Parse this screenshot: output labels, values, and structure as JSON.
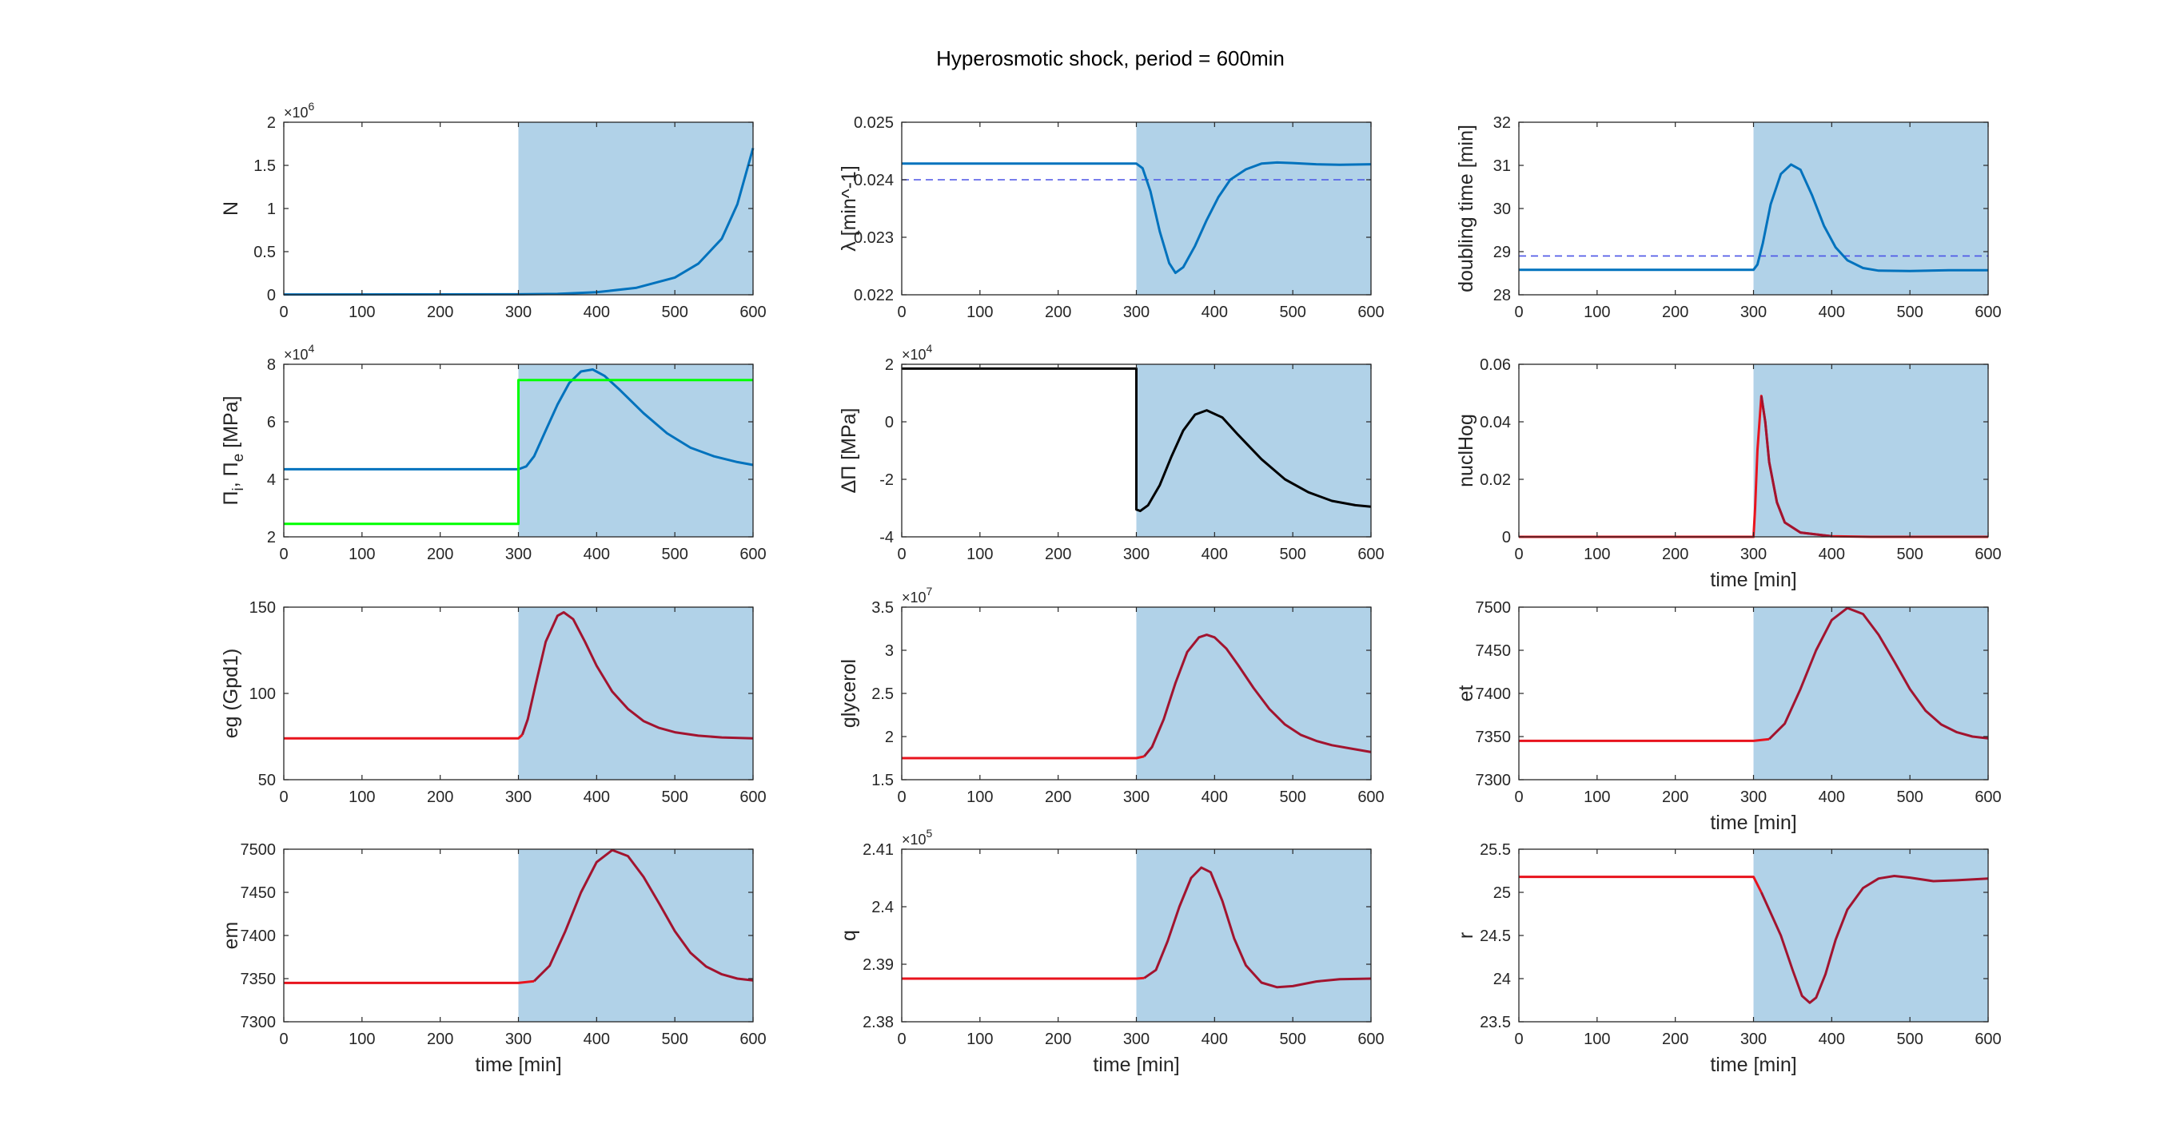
{
  "figure_title": "Hyperosmotic shock, period = 600min",
  "colors": {
    "blue": "#0072bd",
    "green": "#00ff00",
    "black": "#000000",
    "red": "#e8131d",
    "dark_red": "#a2142f",
    "shade": "#b1d2e8",
    "dashed": "#4b54e6"
  },
  "chart_data": [
    {
      "id": "N",
      "type": "line",
      "ylabel": "N",
      "xlabel": "",
      "xlim": [
        0,
        600
      ],
      "ylim": [
        0,
        2
      ],
      "xticks": [
        "0",
        "100",
        "200",
        "300",
        "400",
        "500",
        "600"
      ],
      "yticks": [
        "0",
        "0.5",
        "1",
        "1.5",
        "2"
      ],
      "exponent": "6",
      "shade_from": 300,
      "series": [
        {
          "color": "blue",
          "x": [
            0,
            300,
            350,
            400,
            450,
            500,
            530,
            560,
            580,
            600
          ],
          "y": [
            0.004,
            0.006,
            0.01,
            0.03,
            0.08,
            0.2,
            0.36,
            0.65,
            1.05,
            1.7
          ]
        }
      ]
    },
    {
      "id": "lambda",
      "type": "line",
      "ylabel": "λ [min^-1]",
      "xlabel": "",
      "xlim": [
        0,
        600
      ],
      "ylim": [
        0.022,
        0.025
      ],
      "xticks": [
        "0",
        "100",
        "200",
        "300",
        "400",
        "500",
        "600"
      ],
      "yticks": [
        "0.022",
        "0.023",
        "0.024",
        "0.025"
      ],
      "shade_from": 300,
      "hline": 0.024,
      "series": [
        {
          "color": "blue",
          "x": [
            0,
            300,
            308,
            318,
            330,
            342,
            350,
            360,
            375,
            390,
            405,
            420,
            440,
            460,
            480,
            500,
            530,
            560,
            600
          ],
          "y": [
            0.02428,
            0.02428,
            0.0242,
            0.0238,
            0.0231,
            0.02255,
            0.02238,
            0.02248,
            0.02285,
            0.0233,
            0.0237,
            0.024,
            0.02418,
            0.02428,
            0.0243,
            0.02429,
            0.02427,
            0.02426,
            0.02427
          ]
        }
      ]
    },
    {
      "id": "doubling",
      "type": "line",
      "ylabel": "doubling time [min]",
      "xlabel": "",
      "xlim": [
        0,
        600
      ],
      "ylim": [
        28,
        32
      ],
      "xticks": [
        "0",
        "100",
        "200",
        "300",
        "400",
        "500",
        "600"
      ],
      "yticks": [
        "28",
        "29",
        "30",
        "31",
        "32"
      ],
      "shade_from": 300,
      "hline": 28.9,
      "series": [
        {
          "color": "blue",
          "x": [
            0,
            300,
            305,
            312,
            322,
            335,
            348,
            360,
            375,
            390,
            405,
            420,
            440,
            460,
            500,
            550,
            600
          ],
          "y": [
            28.58,
            28.58,
            28.7,
            29.2,
            30.1,
            30.8,
            31.02,
            30.9,
            30.3,
            29.6,
            29.1,
            28.8,
            28.62,
            28.56,
            28.55,
            28.57,
            28.57
          ]
        }
      ]
    },
    {
      "id": "pressure",
      "type": "line",
      "ylabel": "Πi, Πe [MPa]",
      "xlabel": "",
      "xlim": [
        0,
        600
      ],
      "ylim": [
        2,
        8
      ],
      "xticks": [
        "0",
        "100",
        "200",
        "300",
        "400",
        "500",
        "600"
      ],
      "yticks": [
        "2",
        "4",
        "6",
        "8"
      ],
      "exponent": "4",
      "shade_from": 300,
      "series": [
        {
          "color": "blue",
          "x": [
            0,
            300,
            310,
            320,
            335,
            350,
            365,
            380,
            395,
            410,
            430,
            460,
            490,
            520,
            550,
            580,
            600
          ],
          "y": [
            4.35,
            4.35,
            4.45,
            4.8,
            5.7,
            6.6,
            7.35,
            7.75,
            7.82,
            7.6,
            7.1,
            6.3,
            5.6,
            5.1,
            4.8,
            4.6,
            4.5
          ]
        },
        {
          "color": "green",
          "x": [
            0,
            300,
            300,
            600
          ],
          "y": [
            2.45,
            2.45,
            7.45,
            7.45
          ]
        }
      ]
    },
    {
      "id": "dpi",
      "type": "line",
      "ylabel": "ΔΠ [MPa]",
      "xlabel": "",
      "xlim": [
        0,
        600
      ],
      "ylim": [
        -4,
        2
      ],
      "xticks": [
        "0",
        "100",
        "200",
        "300",
        "400",
        "500",
        "600"
      ],
      "yticks": [
        "-4",
        "-2",
        "0",
        "2"
      ],
      "exponent": "4",
      "shade_from": 300,
      "series": [
        {
          "color": "black",
          "x": [
            0,
            300,
            300,
            305,
            315,
            330,
            345,
            360,
            375,
            390,
            410,
            430,
            460,
            490,
            520,
            550,
            580,
            600
          ],
          "y": [
            1.85,
            1.85,
            -3.05,
            -3.1,
            -2.9,
            -2.2,
            -1.2,
            -0.3,
            0.25,
            0.4,
            0.15,
            -0.45,
            -1.3,
            -2.0,
            -2.45,
            -2.75,
            -2.9,
            -2.95
          ]
        }
      ]
    },
    {
      "id": "nuclHog",
      "type": "line",
      "ylabel": "nuclHog",
      "xlabel": "time [min]",
      "xlim": [
        0,
        600
      ],
      "ylim": [
        0,
        0.06
      ],
      "xticks": [
        "0",
        "100",
        "200",
        "300",
        "400",
        "500",
        "600"
      ],
      "yticks": [
        "0",
        "0.02",
        "0.04",
        "0.06"
      ],
      "shade_from": 300,
      "series": [
        {
          "color": "red",
          "x": [
            0,
            300,
            302,
            305,
            310,
            315,
            320,
            330,
            340,
            360,
            400,
            450,
            600
          ],
          "y": [
            0,
            0,
            0.01,
            0.03,
            0.049,
            0.04,
            0.026,
            0.012,
            0.005,
            0.0015,
            0.0002,
            0,
            0
          ]
        },
        {
          "color": "dark_red",
          "x": [
            310,
            315,
            320,
            330,
            340,
            360,
            400
          ],
          "y": [
            0.049,
            0.04,
            0.026,
            0.012,
            0.005,
            0.0015,
            0.0002
          ]
        }
      ]
    },
    {
      "id": "eg",
      "type": "line",
      "ylabel": "eg (Gpd1)",
      "xlabel": "",
      "xlim": [
        0,
        600
      ],
      "ylim": [
        50,
        150
      ],
      "xticks": [
        "0",
        "100",
        "200",
        "300",
        "400",
        "500",
        "600"
      ],
      "yticks": [
        "50",
        "100",
        "150"
      ],
      "shade_from": 300,
      "series": [
        {
          "color": "red",
          "x": [
            0,
            300,
            305
          ],
          "y": [
            74,
            74,
            76
          ]
        },
        {
          "color": "dark_red",
          "x": [
            305,
            312,
            322,
            335,
            350,
            358,
            370,
            385,
            400,
            420,
            440,
            460,
            480,
            500,
            530,
            560,
            600
          ],
          "y": [
            76,
            85,
            105,
            130,
            145,
            147,
            143,
            130,
            116,
            101,
            91,
            84,
            80,
            77.5,
            75.5,
            74.5,
            74
          ]
        }
      ]
    },
    {
      "id": "glycerol",
      "type": "line",
      "ylabel": "glycerol",
      "xlabel": "",
      "xlim": [
        0,
        600
      ],
      "ylim": [
        1.5,
        3.5
      ],
      "xticks": [
        "0",
        "100",
        "200",
        "300",
        "400",
        "500",
        "600"
      ],
      "yticks": [
        "1.5",
        "2",
        "2.5",
        "3",
        "3.5"
      ],
      "exponent": "7",
      "shade_from": 300,
      "series": [
        {
          "color": "red",
          "x": [
            0,
            300,
            310
          ],
          "y": [
            1.75,
            1.75,
            1.77
          ]
        },
        {
          "color": "dark_red",
          "x": [
            310,
            320,
            335,
            350,
            365,
            380,
            390,
            400,
            415,
            430,
            450,
            470,
            490,
            510,
            530,
            550,
            575,
            600
          ],
          "y": [
            1.77,
            1.88,
            2.2,
            2.62,
            2.98,
            3.15,
            3.18,
            3.15,
            3.02,
            2.83,
            2.56,
            2.32,
            2.14,
            2.02,
            1.95,
            1.9,
            1.86,
            1.82
          ]
        }
      ]
    },
    {
      "id": "et",
      "type": "line",
      "ylabel": "et",
      "xlabel": "time [min]",
      "xlim": [
        0,
        600
      ],
      "ylim": [
        7300,
        7500
      ],
      "xticks": [
        "0",
        "100",
        "200",
        "300",
        "400",
        "500",
        "600"
      ],
      "yticks": [
        "7300",
        "7350",
        "7400",
        "7450",
        "7500"
      ],
      "shade_from": 300,
      "series": [
        {
          "color": "red",
          "x": [
            0,
            300,
            320
          ],
          "y": [
            7345,
            7345,
            7347
          ]
        },
        {
          "color": "dark_red",
          "x": [
            320,
            340,
            360,
            380,
            400,
            420,
            440,
            460,
            480,
            500,
            520,
            540,
            560,
            580,
            600
          ],
          "y": [
            7347,
            7365,
            7405,
            7450,
            7485,
            7499,
            7492,
            7468,
            7437,
            7405,
            7380,
            7364,
            7355,
            7350,
            7348
          ]
        }
      ]
    },
    {
      "id": "em",
      "type": "line",
      "ylabel": "em",
      "xlabel": "time [min]",
      "xlim": [
        0,
        600
      ],
      "ylim": [
        7300,
        7500
      ],
      "xticks": [
        "0",
        "100",
        "200",
        "300",
        "400",
        "500",
        "600"
      ],
      "yticks": [
        "7300",
        "7350",
        "7400",
        "7450",
        "7500"
      ],
      "shade_from": 300,
      "series": [
        {
          "color": "red",
          "x": [
            0,
            300,
            320
          ],
          "y": [
            7345,
            7345,
            7347
          ]
        },
        {
          "color": "dark_red",
          "x": [
            320,
            340,
            360,
            380,
            400,
            420,
            440,
            460,
            480,
            500,
            520,
            540,
            560,
            580,
            600
          ],
          "y": [
            7347,
            7365,
            7405,
            7450,
            7485,
            7499,
            7492,
            7468,
            7437,
            7405,
            7380,
            7364,
            7355,
            7350,
            7348
          ]
        }
      ]
    },
    {
      "id": "q",
      "type": "line",
      "ylabel": "q",
      "xlabel": "time [min]",
      "xlim": [
        0,
        600
      ],
      "ylim": [
        2.38,
        2.41
      ],
      "xticks": [
        "0",
        "100",
        "200",
        "300",
        "400",
        "500",
        "600"
      ],
      "yticks": [
        "2.38",
        "2.39",
        "2.4",
        "2.41"
      ],
      "exponent": "5",
      "shade_from": 300,
      "series": [
        {
          "color": "red",
          "x": [
            0,
            300,
            310
          ],
          "y": [
            2.3875,
            2.3875,
            2.3876
          ]
        },
        {
          "color": "dark_red",
          "x": [
            310,
            325,
            340,
            355,
            370,
            383,
            395,
            410,
            425,
            440,
            460,
            480,
            500,
            530,
            560,
            600
          ],
          "y": [
            2.3876,
            2.389,
            2.394,
            2.4,
            2.405,
            2.4068,
            2.406,
            2.401,
            2.3945,
            2.3898,
            2.3868,
            2.386,
            2.3862,
            2.387,
            2.3874,
            2.3875
          ]
        }
      ]
    },
    {
      "id": "r",
      "type": "line",
      "ylabel": "r",
      "xlabel": "time [min]",
      "xlim": [
        0,
        600
      ],
      "ylim": [
        23.5,
        25.5
      ],
      "xticks": [
        "0",
        "100",
        "200",
        "300",
        "400",
        "500",
        "600"
      ],
      "yticks": [
        "23.5",
        "24",
        "24.5",
        "25",
        "25.5"
      ],
      "shade_from": 300,
      "series": [
        {
          "color": "red",
          "x": [
            0,
            300,
            310
          ],
          "y": [
            25.18,
            25.18,
            25.0
          ]
        },
        {
          "color": "dark_red",
          "x": [
            310,
            320,
            335,
            350,
            362,
            372,
            380,
            392,
            405,
            420,
            440,
            460,
            480,
            500,
            530,
            560,
            600
          ],
          "y": [
            25.0,
            24.8,
            24.5,
            24.1,
            23.8,
            23.72,
            23.78,
            24.05,
            24.45,
            24.8,
            25.05,
            25.16,
            25.19,
            25.17,
            25.13,
            25.14,
            25.16
          ]
        }
      ]
    }
  ]
}
